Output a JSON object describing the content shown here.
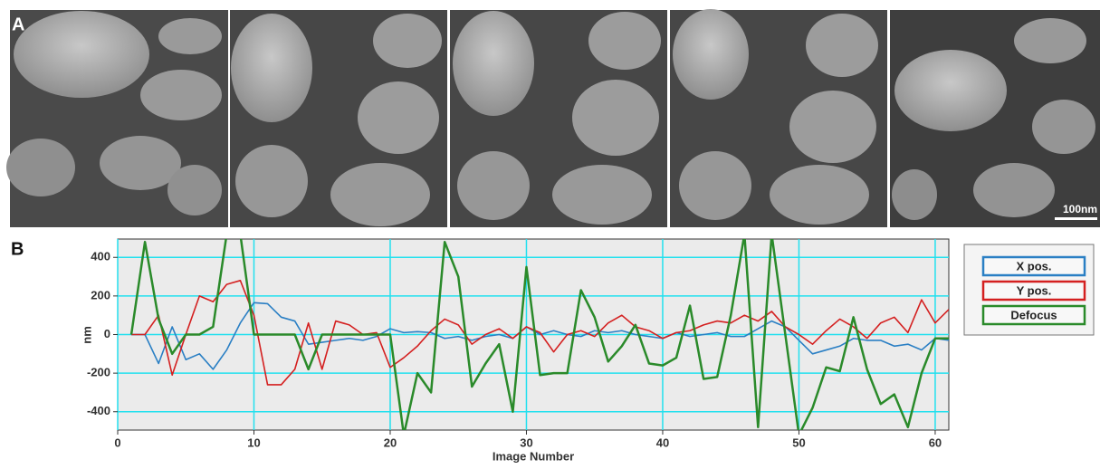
{
  "panel_labels": [
    "A",
    "B"
  ],
  "scale_bar": "100nm",
  "chart_data": {
    "type": "line",
    "x_label": "Image Number",
    "y_label": "nm",
    "x": [
      1,
      2,
      3,
      4,
      5,
      6,
      7,
      8,
      9,
      10,
      11,
      12,
      13,
      14,
      15,
      16,
      17,
      18,
      19,
      20,
      21,
      22,
      23,
      24,
      25,
      26,
      27,
      28,
      29,
      30,
      31,
      32,
      33,
      34,
      35,
      36,
      37,
      38,
      39,
      40,
      41,
      42,
      43,
      44,
      45,
      46,
      47,
      48,
      49,
      50,
      51,
      52,
      53,
      54,
      55,
      56,
      57,
      58,
      59,
      60,
      61
    ],
    "series": [
      {
        "name": "X pos.",
        "color": "#2a7fc4",
        "values": [
          0,
          0,
          -150,
          40,
          -130,
          -100,
          -180,
          -80,
          60,
          165,
          160,
          90,
          70,
          -50,
          -40,
          -30,
          -20,
          -30,
          -10,
          30,
          10,
          15,
          10,
          -20,
          -10,
          -30,
          -10,
          0,
          -20,
          40,
          0,
          20,
          0,
          -10,
          20,
          10,
          20,
          0,
          -10,
          -20,
          10,
          -10,
          0,
          10,
          -10,
          -10,
          30,
          70,
          40,
          -30,
          -100,
          -80,
          -60,
          -20,
          -30,
          -30,
          -60,
          -50,
          -80,
          -20,
          -30
        ]
      },
      {
        "name": "Y pos.",
        "color": "#d42020",
        "values": [
          0,
          0,
          100,
          -210,
          0,
          200,
          170,
          260,
          280,
          100,
          -260,
          -260,
          -180,
          60,
          -180,
          70,
          50,
          0,
          10,
          -170,
          -120,
          -60,
          20,
          80,
          50,
          -50,
          0,
          30,
          -20,
          40,
          10,
          -90,
          0,
          20,
          -10,
          60,
          100,
          40,
          20,
          -20,
          10,
          20,
          50,
          70,
          60,
          100,
          70,
          120,
          40,
          0,
          -50,
          20,
          80,
          40,
          -20,
          60,
          90,
          10,
          180,
          60,
          130
        ]
      },
      {
        "name": "Defocus",
        "color": "#2a8a2a",
        "values": [
          0,
          480,
          80,
          -100,
          0,
          0,
          40,
          520,
          520,
          0,
          0,
          0,
          0,
          -180,
          0,
          0,
          0,
          0,
          0,
          0,
          -520,
          -200,
          -300,
          480,
          300,
          -270,
          -150,
          -50,
          -400,
          350,
          -210,
          -200,
          -200,
          230,
          90,
          -140,
          -60,
          50,
          -150,
          -160,
          -120,
          150,
          -230,
          -220,
          100,
          520,
          -480,
          520,
          0,
          -520,
          -380,
          -170,
          -190,
          90,
          -180,
          -360,
          -310,
          -480,
          -200,
          -20,
          -20
        ]
      }
    ],
    "xlim": [
      0,
      61
    ],
    "ylim": [
      -495,
      495
    ],
    "xticks": [
      0,
      10,
      20,
      30,
      40,
      50,
      60
    ],
    "yticks": [
      -400,
      -200,
      0,
      200,
      400
    ],
    "grid": true,
    "legend": "right"
  }
}
